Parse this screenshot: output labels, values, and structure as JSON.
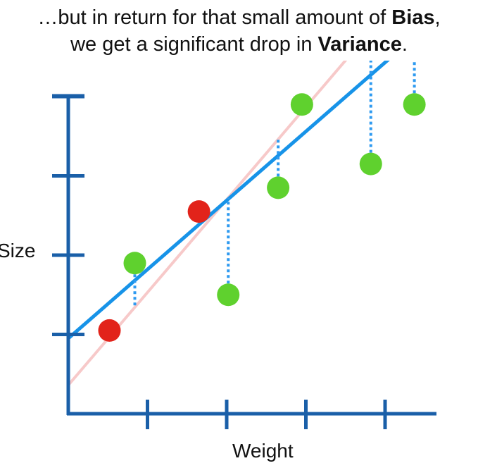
{
  "caption": {
    "line1_pre": "…but in return for that small amount of ",
    "line1_bold": "Bias",
    "line1_post": ",",
    "line2_pre": "we get a significant drop in ",
    "line2_bold": "Variance",
    "line2_post": "."
  },
  "axes": {
    "xlabel": "Weight",
    "ylabel": "Size"
  },
  "colors": {
    "axis": "#1a5fa8",
    "fit_line": "#1793e8",
    "ridge_line": "#f7c9c9",
    "residual": "#2e9af0",
    "train_point": "#e2231a",
    "test_point": "#5fd12e"
  },
  "chart_data": {
    "type": "scatter",
    "title": "",
    "xlabel": "Weight",
    "ylabel": "Size",
    "xlim": [
      0,
      4.6
    ],
    "ylim": [
      0,
      4.2
    ],
    "x_ticks": [
      1,
      2,
      3,
      4
    ],
    "y_ticks": [
      1,
      2,
      3,
      4
    ],
    "grid": false,
    "legend": "none",
    "series": [
      {
        "role": "train",
        "points": [
          {
            "x": 0.52,
            "y": 1.05
          },
          {
            "x": 1.65,
            "y": 2.55
          }
        ]
      },
      {
        "role": "test",
        "points": [
          {
            "x": 0.84,
            "y": 1.9
          },
          {
            "x": 2.02,
            "y": 1.5
          },
          {
            "x": 2.65,
            "y": 2.85
          },
          {
            "x": 2.95,
            "y": 3.9
          },
          {
            "x": 3.82,
            "y": 3.15
          },
          {
            "x": 4.37,
            "y": 3.9
          }
        ]
      }
    ],
    "lines": [
      {
        "role": "ridge_fit",
        "intercept": 0.36,
        "slope": 1.17
      },
      {
        "role": "least_squares_fit",
        "intercept": 0.95,
        "slope": 0.87
      }
    ]
  }
}
